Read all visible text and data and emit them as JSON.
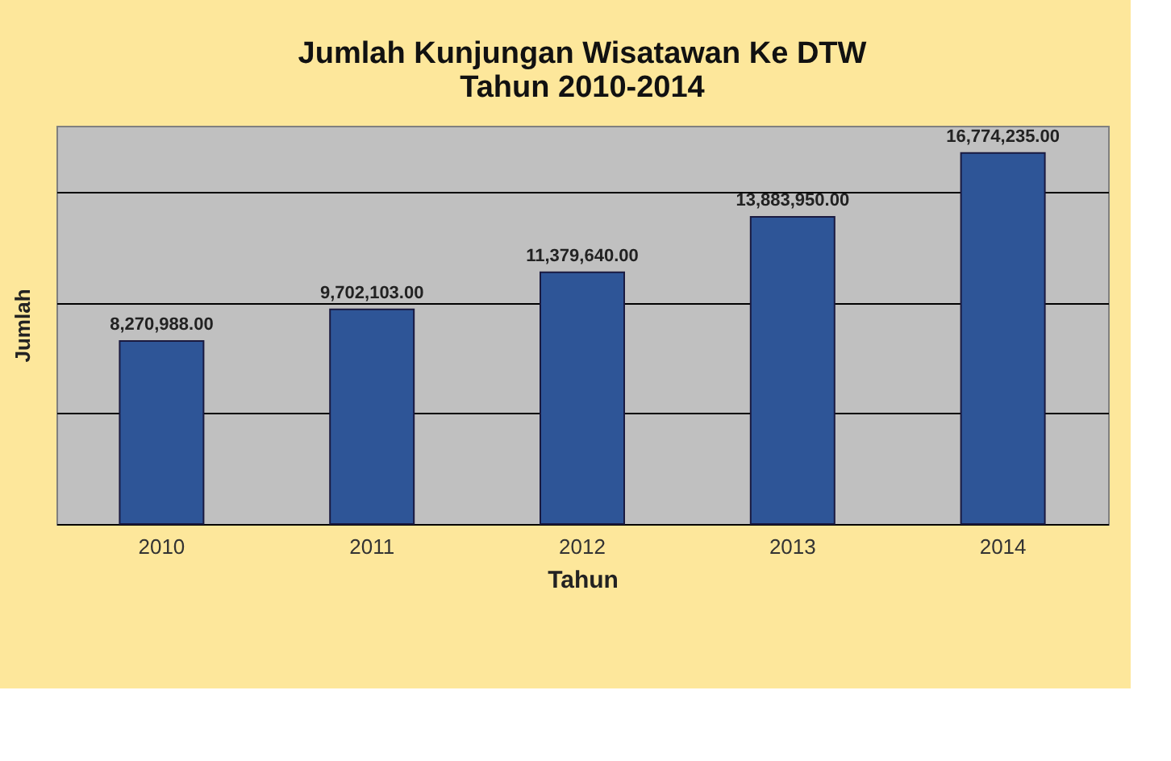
{
  "chart_data": {
    "type": "bar",
    "title": "Jumlah Kunjungan Wisatawan Ke DTW\nTahun 2010-2014",
    "xlabel": "Tahun",
    "ylabel": "Jumlah",
    "categories": [
      "2010",
      "2011",
      "2012",
      "2013",
      "2014"
    ],
    "values": [
      8270988.0,
      9702103.0,
      11379640.0,
      13883950.0,
      16774235.0
    ],
    "value_labels": [
      "8,270,988.00",
      "9,702,103.00",
      "11,379,640.00",
      "13,883,950.00",
      "16,774,235.00"
    ],
    "color": "#2e5597",
    "tick_labels": "x",
    "grid": "y"
  }
}
